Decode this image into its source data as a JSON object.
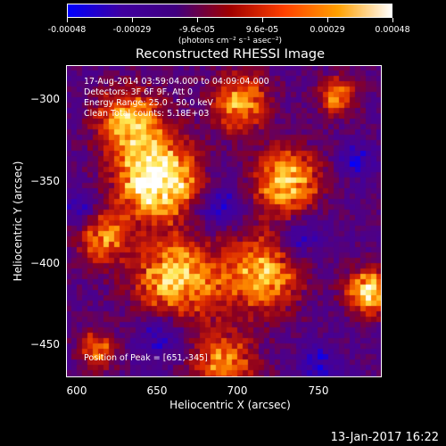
{
  "colorbar": {
    "tick_labels": [
      "-0.00048",
      "-0.00029",
      "-9.6e-05",
      "9.6e-05",
      "0.00029",
      "0.00048"
    ],
    "units": "(photons cm⁻² s⁻¹ asec⁻²)",
    "colors": [
      "#0000ff",
      "#4000a0",
      "#400080",
      "#a00000",
      "#ff4000",
      "#ffa000",
      "#ffffff"
    ]
  },
  "title": "Reconstructed RHESSI Image",
  "info": {
    "time": "17-Aug-2014 03:59:04.000 to 04:09:04.000",
    "detectors": "Detectors: 3F 6F 9F, Att 0",
    "energy": "Energy Range: 25.0 - 50.0 keV",
    "clean": "Clean    Total counts: 5.18E+03",
    "peak": "Position of Peak = [651,-345]"
  },
  "chart_data": {
    "type": "heatmap",
    "title": "Reconstructed RHESSI Image",
    "xlabel": "Heliocentric X (arcsec)",
    "ylabel": "Heliocentric Y (arcsec)",
    "xlim": [
      597,
      787
    ],
    "ylim": [
      -473,
      -285
    ],
    "xticks": [
      600,
      650,
      700,
      750
    ],
    "yticks": [
      -300,
      -350,
      -400,
      -450
    ],
    "colorbar_range": [
      -0.00048,
      0.00048
    ],
    "peak": [
      651,
      -345
    ],
    "legend": "none"
  },
  "axes": {
    "xtick_labels": [
      "600",
      "650",
      "700",
      "750"
    ],
    "ytick_labels": [
      "−300",
      "−350",
      "−400",
      "−450"
    ]
  },
  "timestamp": "13-Jan-2017 16:22"
}
